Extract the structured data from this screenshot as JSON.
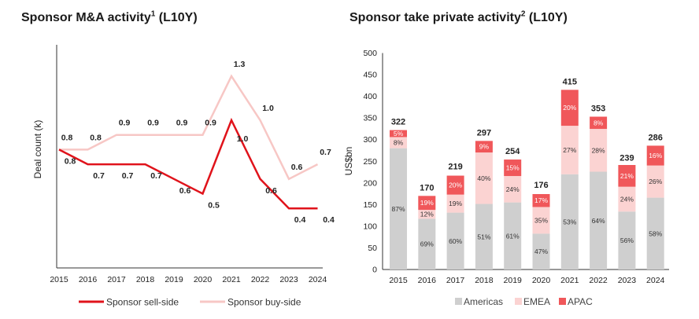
{
  "line_chart_title": {
    "main": "Sponsor M&A activity",
    "sup": "1",
    "suffix": " (L10Y)"
  },
  "bar_chart_title": {
    "main": "Sponsor take private activity",
    "sup": "2",
    "suffix": " (L10Y)"
  },
  "colors": {
    "sell_side": "#e0131b",
    "buy_side": "#f7c7c5",
    "americas": "#cfcfcf",
    "emea": "#fbd3d2",
    "apac": "#f0575a"
  },
  "chart_data": [
    {
      "type": "line",
      "title": "Sponsor M&A activity¹ (L10Y)",
      "xlabel": "",
      "ylabel": "Deal count (k)",
      "categories": [
        "2015",
        "2016",
        "2017",
        "2018",
        "2019",
        "2020",
        "2021",
        "2022",
        "2023",
        "2024"
      ],
      "ylim": [
        0,
        1.5
      ],
      "grid": false,
      "legend": "bottom",
      "series": [
        {
          "name": "Sponsor sell-side",
          "values": [
            0.8,
            0.7,
            0.7,
            0.7,
            0.6,
            0.5,
            1.0,
            0.6,
            0.4,
            0.4
          ],
          "labels": [
            "0.8",
            "0.7",
            "0.7",
            "0.7",
            "0.6",
            "0.5",
            "1.0",
            "0.6",
            "0.4",
            "0.4"
          ]
        },
        {
          "name": "Sponsor buy-side",
          "values": [
            0.8,
            0.8,
            0.9,
            0.9,
            0.9,
            0.9,
            1.3,
            1.0,
            0.6,
            0.7
          ],
          "labels": [
            "0.8",
            "0.8",
            "0.9",
            "0.9",
            "0.9",
            "0.9",
            "1.3",
            "1.0",
            "0.6",
            "0.7"
          ]
        }
      ]
    },
    {
      "type": "bar",
      "stacked": true,
      "title": "Sponsor take private activity² (L10Y)",
      "xlabel": "",
      "ylabel": "US$bn",
      "ylim": [
        0,
        500
      ],
      "yticks": [
        "0",
        "50",
        "100",
        "150",
        "200",
        "250",
        "300",
        "350",
        "400",
        "450",
        "500"
      ],
      "categories": [
        "2015",
        "2016",
        "2017",
        "2018",
        "2019",
        "2020",
        "2021",
        "2022",
        "2023",
        "2024"
      ],
      "totals": [
        322,
        170,
        219,
        297,
        254,
        176,
        415,
        353,
        239,
        286
      ],
      "grid": false,
      "legend": "bottom",
      "series": [
        {
          "name": "Americas",
          "pct": [
            87,
            69,
            60,
            51,
            61,
            47,
            53,
            64,
            56,
            58
          ],
          "labels": [
            "87%",
            "69%",
            "60%",
            "51%",
            "61%",
            "47%",
            "53%",
            "64%",
            "56%",
            "58%"
          ]
        },
        {
          "name": "EMEA",
          "pct": [
            8,
            12,
            19,
            40,
            24,
            35,
            27,
            28,
            24,
            26
          ],
          "labels": [
            "8%",
            "12%",
            "19%",
            "40%",
            "24%",
            "35%",
            "27%",
            "28%",
            "24%",
            "26%"
          ]
        },
        {
          "name": "APAC",
          "pct": [
            5,
            19,
            20,
            9,
            15,
            17,
            20,
            8,
            21,
            16
          ],
          "labels": [
            "5%",
            "19%",
            "20%",
            "9%",
            "15%",
            "17%",
            "20%",
            "8%",
            "21%",
            "16%"
          ]
        }
      ]
    }
  ]
}
